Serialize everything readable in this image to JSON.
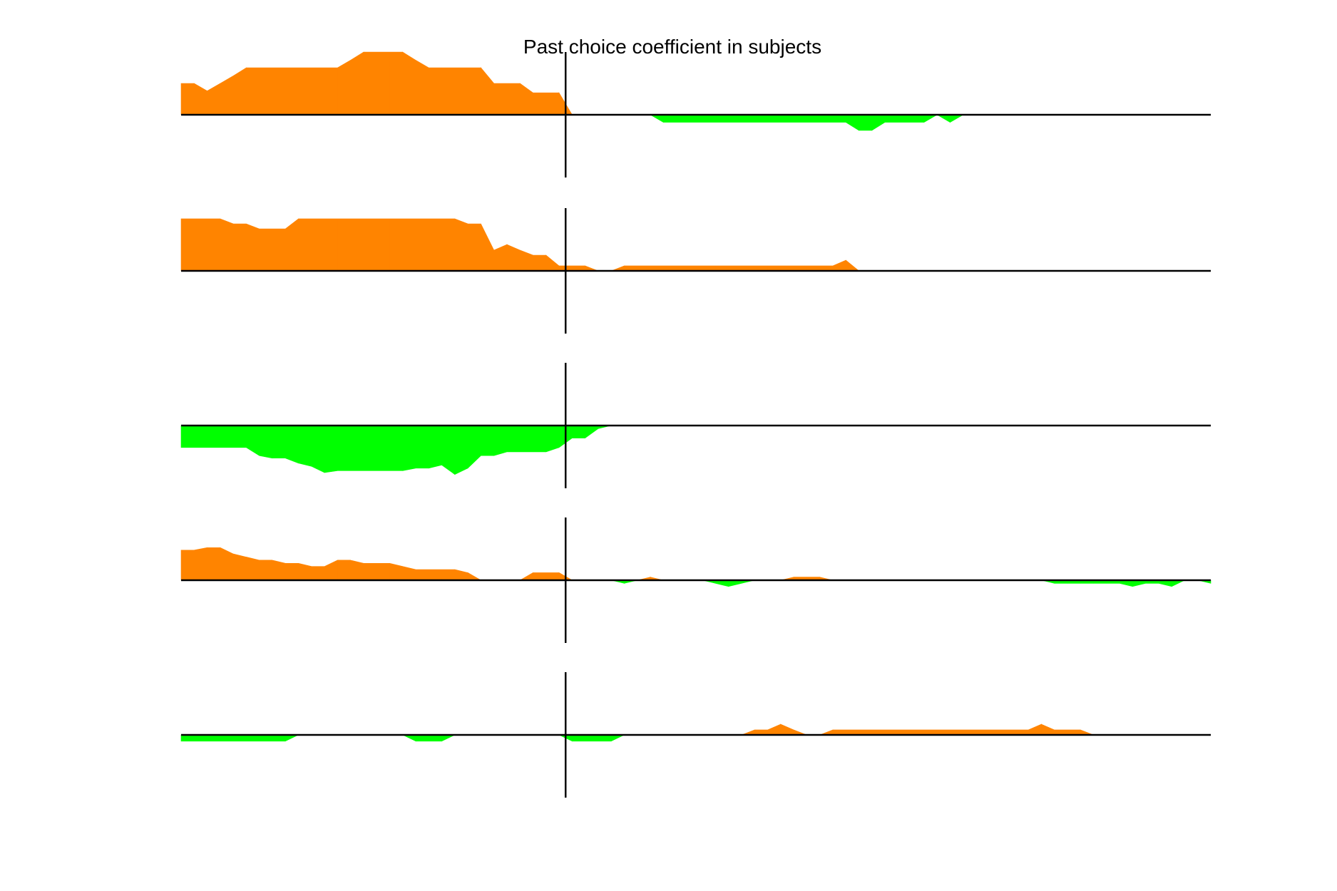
{
  "chart_data": {
    "type": "area",
    "title": "Past choice coefficient in subjects",
    "xlabel": "",
    "ylabel": "",
    "xlim": [
      0,
      79
    ],
    "zero_marker_x": 29.5,
    "grid": false,
    "colors": {
      "positive": "#ff8400",
      "negative": "#00ff00",
      "axis": "#000000"
    },
    "panels": [
      {
        "ylim": [
          -1,
          1
        ],
        "x": [
          0,
          1,
          2,
          3,
          4,
          5,
          6,
          7,
          8,
          9,
          10,
          11,
          12,
          13,
          14,
          15,
          16,
          17,
          18,
          19,
          20,
          21,
          22,
          23,
          24,
          25,
          26,
          27,
          28,
          29,
          30,
          31,
          32,
          33,
          34,
          35,
          36,
          37,
          38,
          39,
          40,
          41,
          42,
          43,
          44,
          45,
          46,
          47,
          48,
          49,
          50,
          51,
          52,
          53,
          54,
          55,
          56,
          57,
          58,
          59,
          60,
          61,
          62,
          63,
          64,
          65,
          66,
          67,
          68,
          69,
          70,
          71,
          72,
          73,
          74,
          75,
          76,
          77,
          78,
          79
        ],
        "values": [
          0.5,
          0.5,
          0.38,
          0.5,
          0.62,
          0.75,
          0.75,
          0.75,
          0.75,
          0.75,
          0.75,
          0.75,
          0.75,
          0.87,
          1.0,
          1.0,
          1.0,
          1.0,
          0.87,
          0.75,
          0.75,
          0.75,
          0.75,
          0.75,
          0.5,
          0.5,
          0.5,
          0.35,
          0.35,
          0.35,
          0.0,
          0.0,
          0.0,
          0.0,
          0.0,
          0.0,
          0.0,
          -0.12,
          -0.12,
          -0.12,
          -0.12,
          -0.12,
          -0.12,
          -0.12,
          -0.12,
          -0.12,
          -0.12,
          -0.12,
          -0.12,
          -0.12,
          -0.12,
          -0.12,
          -0.25,
          -0.25,
          -0.12,
          -0.12,
          -0.12,
          -0.12,
          0.0,
          -0.12,
          0.0,
          0.0,
          0.0,
          0.0,
          0.0,
          0.0,
          0.0,
          0.0,
          0.0,
          0.0,
          0.0,
          0.0,
          0.0,
          0.0,
          0.0,
          0.0,
          0.0,
          0.0,
          0.0,
          0.0
        ]
      },
      {
        "ylim": [
          -1,
          1
        ],
        "x": [
          0,
          1,
          2,
          3,
          4,
          5,
          6,
          7,
          8,
          9,
          10,
          11,
          12,
          13,
          14,
          15,
          16,
          17,
          18,
          19,
          20,
          21,
          22,
          23,
          24,
          25,
          26,
          27,
          28,
          29,
          30,
          31,
          32,
          33,
          34,
          35,
          36,
          37,
          38,
          39,
          40,
          41,
          42,
          43,
          44,
          45,
          46,
          47,
          48,
          49,
          50,
          51,
          52,
          53,
          54,
          55,
          56,
          57,
          58,
          59,
          60,
          61,
          62,
          63,
          64,
          65,
          66,
          67,
          68,
          69,
          70,
          71,
          72,
          73,
          74,
          75,
          76,
          77,
          78,
          79
        ],
        "values": [
          0.83,
          0.83,
          0.83,
          0.83,
          0.75,
          0.75,
          0.67,
          0.67,
          0.67,
          0.83,
          0.83,
          0.83,
          0.83,
          0.83,
          0.83,
          0.83,
          0.83,
          0.83,
          0.83,
          0.83,
          0.83,
          0.83,
          0.75,
          0.75,
          0.33,
          0.42,
          0.33,
          0.25,
          0.25,
          0.08,
          0.08,
          0.08,
          0.0,
          0.0,
          0.08,
          0.08,
          0.08,
          0.08,
          0.08,
          0.08,
          0.08,
          0.08,
          0.08,
          0.08,
          0.08,
          0.08,
          0.08,
          0.08,
          0.08,
          0.08,
          0.08,
          0.17,
          0.0,
          0.0,
          0.0,
          0.0,
          0.0,
          0.0,
          0.0,
          0.0,
          0.0,
          0.0,
          0.0,
          0.0,
          0.0,
          0.0,
          0.0,
          0.0,
          0.0,
          0.0,
          0.0,
          0.0,
          0.0,
          0.0,
          0.0,
          0.0,
          0.0,
          0.0,
          0.0,
          0.0
        ]
      },
      {
        "ylim": [
          -1,
          1
        ],
        "x": [
          0,
          1,
          2,
          3,
          4,
          5,
          6,
          7,
          8,
          9,
          10,
          11,
          12,
          13,
          14,
          15,
          16,
          17,
          18,
          19,
          20,
          21,
          22,
          23,
          24,
          25,
          26,
          27,
          28,
          29,
          30,
          31,
          32,
          33,
          34,
          35,
          36,
          37,
          38,
          39,
          40,
          41,
          42,
          43,
          44,
          45,
          46,
          47,
          48,
          49,
          50,
          51,
          52,
          53,
          54,
          55,
          56,
          57,
          58,
          59,
          60,
          61,
          62,
          63,
          64,
          65,
          66,
          67,
          68,
          69,
          70,
          71,
          72,
          73,
          74,
          75,
          76,
          77,
          78,
          79
        ],
        "values": [
          -0.35,
          -0.35,
          -0.35,
          -0.35,
          -0.35,
          -0.35,
          -0.48,
          -0.52,
          -0.52,
          -0.6,
          -0.65,
          -0.75,
          -0.72,
          -0.72,
          -0.72,
          -0.72,
          -0.72,
          -0.72,
          -0.68,
          -0.68,
          -0.63,
          -0.78,
          -0.68,
          -0.48,
          -0.48,
          -0.42,
          -0.42,
          -0.42,
          -0.42,
          -0.35,
          -0.2,
          -0.2,
          -0.05,
          0.0,
          0.0,
          0.0,
          0.0,
          0.0,
          0.0,
          0.0,
          0.0,
          0.0,
          0.0,
          0.0,
          0.0,
          0.0,
          0.0,
          0.0,
          0.0,
          0.0,
          0.0,
          0.0,
          0.0,
          0.0,
          0.0,
          0.0,
          0.0,
          0.0,
          0.0,
          0.0,
          0.0,
          0.0,
          0.0,
          0.0,
          0.0,
          0.0,
          0.0,
          0.0,
          0.0,
          0.0,
          0.0,
          0.0,
          0.0,
          0.0,
          0.0,
          0.0,
          0.0,
          0.0,
          0.0,
          0.0
        ]
      },
      {
        "ylim": [
          -1,
          1
        ],
        "x": [
          0,
          1,
          2,
          3,
          4,
          5,
          6,
          7,
          8,
          9,
          10,
          11,
          12,
          13,
          14,
          15,
          16,
          17,
          18,
          19,
          20,
          21,
          22,
          23,
          24,
          25,
          26,
          27,
          28,
          29,
          30,
          31,
          32,
          33,
          34,
          35,
          36,
          37,
          38,
          39,
          40,
          41,
          42,
          43,
          44,
          45,
          46,
          47,
          48,
          49,
          50,
          51,
          52,
          53,
          54,
          55,
          56,
          57,
          58,
          59,
          60,
          61,
          62,
          63,
          64,
          65,
          66,
          67,
          68,
          69,
          70,
          71,
          72,
          73,
          74,
          75,
          76,
          77,
          78,
          79
        ],
        "values": [
          0.48,
          0.48,
          0.52,
          0.52,
          0.42,
          0.37,
          0.32,
          0.32,
          0.27,
          0.27,
          0.22,
          0.22,
          0.32,
          0.32,
          0.27,
          0.27,
          0.27,
          0.22,
          0.17,
          0.17,
          0.17,
          0.17,
          0.12,
          0.0,
          0.0,
          0.0,
          0.0,
          0.12,
          0.12,
          0.12,
          0.0,
          0.0,
          0.0,
          0.0,
          -0.05,
          0.0,
          0.05,
          0.0,
          0.0,
          0.0,
          0.0,
          -0.05,
          -0.1,
          -0.05,
          0.0,
          0.0,
          0.0,
          0.05,
          0.05,
          0.05,
          0.0,
          0.0,
          0.0,
          0.0,
          0.0,
          0.0,
          0.0,
          0.0,
          0.0,
          0.0,
          0.0,
          0.0,
          0.0,
          0.0,
          0.0,
          0.0,
          0.0,
          -0.05,
          -0.05,
          -0.05,
          -0.05,
          -0.05,
          -0.05,
          -0.1,
          -0.05,
          -0.05,
          -0.1,
          0.0,
          0.0,
          -0.05
        ]
      },
      {
        "ylim": [
          -1,
          1
        ],
        "x": [
          0,
          1,
          2,
          3,
          4,
          5,
          6,
          7,
          8,
          9,
          10,
          11,
          12,
          13,
          14,
          15,
          16,
          17,
          18,
          19,
          20,
          21,
          22,
          23,
          24,
          25,
          26,
          27,
          28,
          29,
          30,
          31,
          32,
          33,
          34,
          35,
          36,
          37,
          38,
          39,
          40,
          41,
          42,
          43,
          44,
          45,
          46,
          47,
          48,
          49,
          50,
          51,
          52,
          53,
          54,
          55,
          56,
          57,
          58,
          59,
          60,
          61,
          62,
          63,
          64,
          65,
          66,
          67,
          68,
          69,
          70,
          71,
          72,
          73,
          74,
          75,
          76,
          77,
          78,
          79
        ],
        "values": [
          -0.1,
          -0.1,
          -0.1,
          -0.1,
          -0.1,
          -0.1,
          -0.1,
          -0.1,
          -0.1,
          0.0,
          0.0,
          0.0,
          0.0,
          0.0,
          0.0,
          0.0,
          0.0,
          0.0,
          -0.1,
          -0.1,
          -0.1,
          0.0,
          0.0,
          0.0,
          0.0,
          0.0,
          0.0,
          0.0,
          0.0,
          0.0,
          -0.1,
          -0.1,
          -0.1,
          -0.1,
          0.0,
          0.0,
          0.0,
          0.0,
          0.0,
          0.0,
          0.0,
          0.0,
          0.0,
          0.0,
          0.08,
          0.08,
          0.17,
          0.08,
          0.0,
          0.0,
          0.08,
          0.08,
          0.08,
          0.08,
          0.08,
          0.08,
          0.08,
          0.08,
          0.08,
          0.08,
          0.08,
          0.08,
          0.08,
          0.08,
          0.08,
          0.08,
          0.17,
          0.08,
          0.08,
          0.08,
          0.0,
          0.0,
          0.0,
          0.0,
          0.0,
          0.0,
          0.0,
          0.0,
          0.0,
          0.0
        ]
      }
    ]
  }
}
